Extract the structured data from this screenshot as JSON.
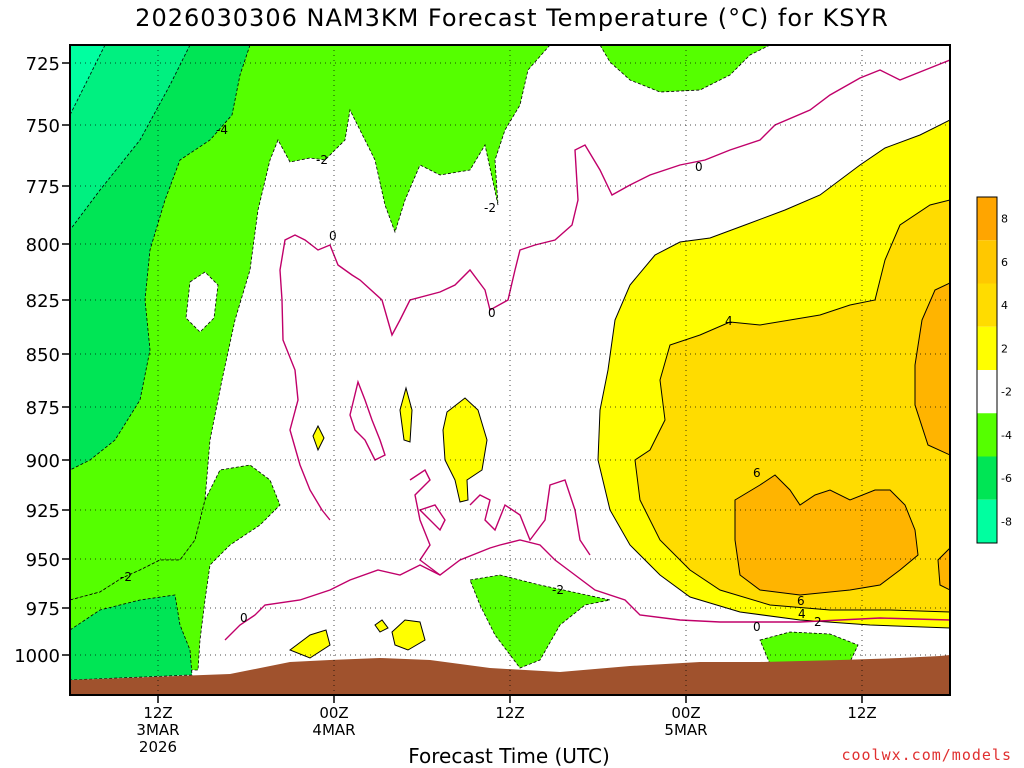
{
  "chart_data": {
    "type": "time-height contour",
    "title": "2026030306 NAM3KM Forecast Temperature (°C) for KSYR",
    "xlabel": "Forecast Time (UTC)",
    "credit": "coolwx.com/models",
    "y_ticks": [
      "725",
      "750",
      "775",
      "800",
      "825",
      "850",
      "875",
      "900",
      "925",
      "950",
      "975",
      "1000"
    ],
    "x_ticks": [
      {
        "lines": [
          "12Z",
          "3MAR",
          "2026"
        ]
      },
      {
        "lines": [
          "00Z",
          "4MAR"
        ]
      },
      {
        "lines": [
          "12Z"
        ]
      },
      {
        "lines": [
          "00Z",
          "5MAR"
        ]
      },
      {
        "lines": [
          "12Z"
        ]
      }
    ],
    "ylim": [
      1015,
      710
    ],
    "colorbar": {
      "labels": [
        "8",
        "6",
        "4",
        "2",
        "-2",
        "-4",
        "-6",
        "-8"
      ],
      "colors": [
        "#ffa500",
        "#ffc800",
        "#ffdc00",
        "#ffff00",
        "#ffffff",
        "#55ff00",
        "#00e555",
        "#00ffa0"
      ]
    },
    "contour_labels": [
      "-4",
      "-2",
      "0",
      "-2",
      "0",
      "0",
      "4",
      "6",
      "6",
      "-2",
      "-2",
      "4",
      "2",
      "0",
      "0"
    ],
    "colors": {
      "ground": "#a0522d",
      "zero_line": "#c0006a",
      "plot_bg": "#ffffff"
    }
  }
}
